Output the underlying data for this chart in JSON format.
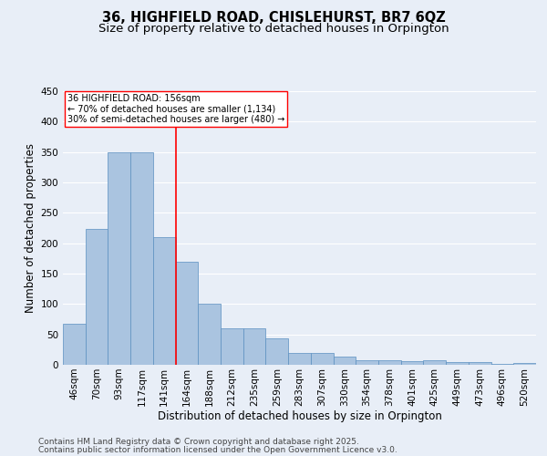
{
  "title": "36, HIGHFIELD ROAD, CHISLEHURST, BR7 6QZ",
  "subtitle": "Size of property relative to detached houses in Orpington",
  "xlabel": "Distribution of detached houses by size in Orpington",
  "ylabel": "Number of detached properties",
  "categories": [
    "46sqm",
    "70sqm",
    "93sqm",
    "117sqm",
    "141sqm",
    "164sqm",
    "188sqm",
    "212sqm",
    "235sqm",
    "259sqm",
    "283sqm",
    "307sqm",
    "330sqm",
    "354sqm",
    "378sqm",
    "401sqm",
    "425sqm",
    "449sqm",
    "473sqm",
    "496sqm",
    "520sqm"
  ],
  "values": [
    67,
    224,
    350,
    350,
    210,
    170,
    100,
    60,
    60,
    43,
    20,
    20,
    14,
    8,
    7,
    6,
    8,
    4,
    4,
    1,
    3
  ],
  "bar_color": "#aac4e0",
  "bar_edge_color": "#5a8fc0",
  "ylim": [
    0,
    450
  ],
  "yticks": [
    0,
    50,
    100,
    150,
    200,
    250,
    300,
    350,
    400,
    450
  ],
  "property_label": "36 HIGHFIELD ROAD: 156sqm",
  "annotation_line1": "← 70% of detached houses are smaller (1,134)",
  "annotation_line2": "30% of semi-detached houses are larger (480) →",
  "vline_bar_index": 4,
  "footnote1": "Contains HM Land Registry data © Crown copyright and database right 2025.",
  "footnote2": "Contains public sector information licensed under the Open Government Licence v3.0.",
  "background_color": "#e8eef7",
  "grid_color": "#ffffff",
  "title_fontsize": 10.5,
  "subtitle_fontsize": 9.5,
  "axis_label_fontsize": 8.5,
  "tick_fontsize": 7.5,
  "annotation_fontsize": 7,
  "footnote_fontsize": 6.5
}
